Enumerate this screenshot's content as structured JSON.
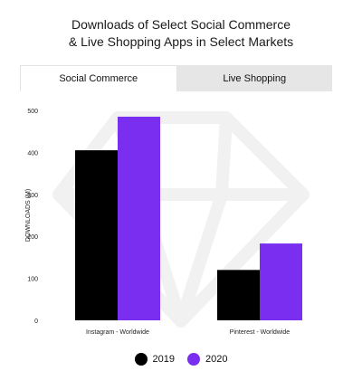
{
  "title_lines": [
    "Downloads of Select Social Commerce",
    "& Live Shopping Apps in Select Markets"
  ],
  "tabs": [
    {
      "label": "Social Commerce",
      "active": true
    },
    {
      "label": "Live Shopping",
      "active": false
    }
  ],
  "colors": {
    "series_2019": "#000000",
    "series_2020": "#7a2ff0",
    "watermark": "#f2f2f2",
    "tab_inactive": "#e6e6e6"
  },
  "chart_data": {
    "type": "bar",
    "categories": [
      "Instagram - Worldwide",
      "Pinterest - Worldwide"
    ],
    "series": [
      {
        "name": "2019",
        "values": [
          405,
          120
        ]
      },
      {
        "name": "2020",
        "values": [
          485,
          183
        ]
      }
    ],
    "ylabel": "DOWNLOADS (M)",
    "ylim": [
      0,
      500
    ],
    "yticks": [
      0,
      100,
      200,
      300,
      400,
      500
    ],
    "grid": false,
    "legend_position": "bottom-center"
  }
}
